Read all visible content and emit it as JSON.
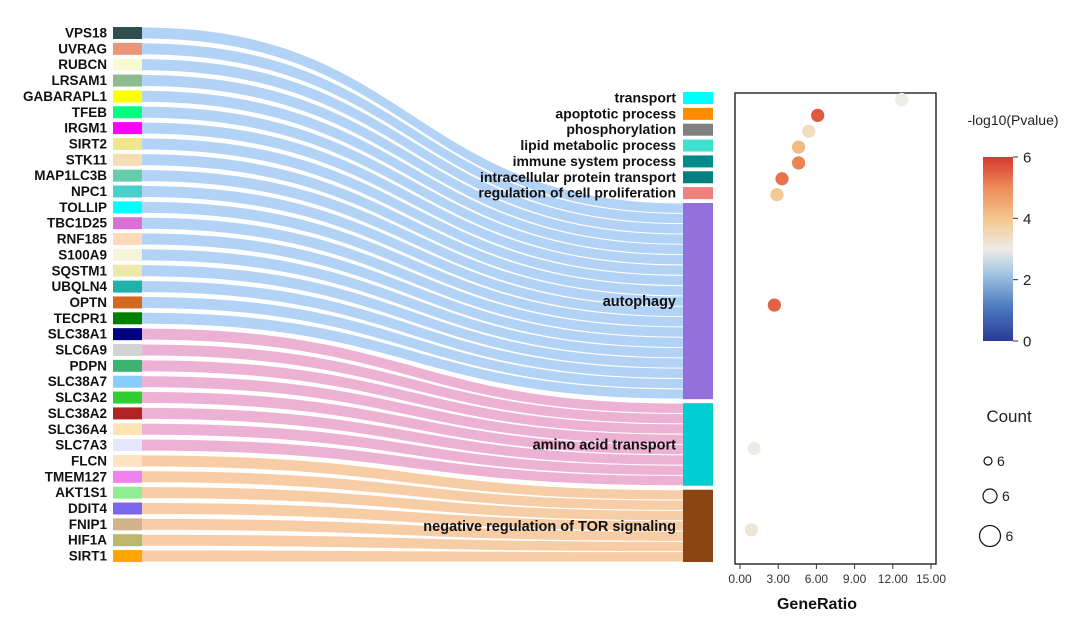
{
  "chart_data": [
    {
      "type": "sankey",
      "genes": [
        {
          "name": "VPS18",
          "color": "#2f4f4f"
        },
        {
          "name": "UVRAG",
          "color": "#e9967a"
        },
        {
          "name": "RUBCN",
          "color": "#fafad2"
        },
        {
          "name": "LRSAM1",
          "color": "#8fbc8f"
        },
        {
          "name": "GABARAPL1",
          "color": "#ffff00"
        },
        {
          "name": "TFEB",
          "color": "#00ff7f"
        },
        {
          "name": "IRGM1",
          "color": "#ff00ff"
        },
        {
          "name": "SIRT2",
          "color": "#f0e68c"
        },
        {
          "name": "STK11",
          "color": "#f5deb3"
        },
        {
          "name": "MAP1LC3B",
          "color": "#66cdaa"
        },
        {
          "name": "NPC1",
          "color": "#48d1cc"
        },
        {
          "name": "TOLLIP",
          "color": "#00ffff"
        },
        {
          "name": "TBC1D25",
          "color": "#da70d6"
        },
        {
          "name": "RNF185",
          "color": "#ffdab9"
        },
        {
          "name": "S100A9",
          "color": "#f5f5dc"
        },
        {
          "name": "SQSTM1",
          "color": "#eee8aa"
        },
        {
          "name": "UBQLN4",
          "color": "#20b2aa"
        },
        {
          "name": "OPTN",
          "color": "#d2691e"
        },
        {
          "name": "TECPR1",
          "color": "#008000"
        },
        {
          "name": "SLC38A1",
          "color": "#000080"
        },
        {
          "name": "SLC6A9",
          "color": "#d3d3d3"
        },
        {
          "name": "PDPN",
          "color": "#3cb371"
        },
        {
          "name": "SLC38A7",
          "color": "#87cefa"
        },
        {
          "name": "SLC3A2",
          "color": "#32cd32"
        },
        {
          "name": "SLC38A2",
          "color": "#b22222"
        },
        {
          "name": "SLC36A4",
          "color": "#ffe4b5"
        },
        {
          "name": "SLC7A3",
          "color": "#e6e6fa"
        },
        {
          "name": "FLCN",
          "color": "#ffe4c4"
        },
        {
          "name": "TMEM127",
          "color": "#ee82ee"
        },
        {
          "name": "AKT1S1",
          "color": "#90ee90"
        },
        {
          "name": "DDIT4",
          "color": "#7b68ee"
        },
        {
          "name": "FNIP1",
          "color": "#d2b48c"
        },
        {
          "name": "HIF1A",
          "color": "#bdb76b"
        },
        {
          "name": "SIRT1",
          "color": "#ffa500"
        }
      ],
      "terms": [
        {
          "name": "transport",
          "color": "#00ffff",
          "genes": 0
        },
        {
          "name": "apoptotic process",
          "color": "#ff8c00",
          "genes": 0
        },
        {
          "name": "phosphorylation",
          "color": "#808080",
          "genes": 0
        },
        {
          "name": "lipid metabolic process",
          "color": "#40e0d0",
          "genes": 0
        },
        {
          "name": "immune system process",
          "color": "#008b8b",
          "genes": 0
        },
        {
          "name": "intracellular protein transport",
          "color": "#008080",
          "genes": 0
        },
        {
          "name": "regulation of cell proliferation",
          "color": "#f08080",
          "genes": 0
        },
        {
          "name": "autophagy",
          "color": "#9370db",
          "genes": 19
        },
        {
          "name": "amino acid transport",
          "color": "#00ced1",
          "genes": 8
        },
        {
          "name": "negative regulation of TOR signaling",
          "color": "#8b4513",
          "genes": 7
        }
      ],
      "link_colors": {
        "autophagy": "#b2d3f5",
        "amino acid transport": "#edb1d3",
        "negative regulation of TOR signaling": "#f7cda6"
      }
    },
    {
      "type": "scatter",
      "xlabel": "GeneRatio",
      "xlim": [
        0,
        15
      ],
      "xticks": [
        "0.00",
        "3.00",
        "6.00",
        "9.00",
        "12.00",
        "15.00"
      ],
      "points": [
        {
          "term": "transport",
          "x": 12.7,
          "p": 3.0
        },
        {
          "term": "apoptotic process",
          "x": 6.1,
          "p": 5.6
        },
        {
          "term": "phosphorylation",
          "x": 5.4,
          "p": 3.4
        },
        {
          "term": "lipid metabolic process",
          "x": 4.6,
          "p": 4.2
        },
        {
          "term": "immune system process",
          "x": 4.6,
          "p": 5.1
        },
        {
          "term": "intracellular protein transport",
          "x": 3.3,
          "p": 5.3
        },
        {
          "term": "regulation of cell proliferation",
          "x": 2.9,
          "p": 3.9
        },
        {
          "term": "autophagy",
          "x": 2.7,
          "p": 5.5
        },
        {
          "term": "amino acid transport",
          "x": 1.1,
          "p": 3.0
        },
        {
          "term": "negative regulation of TOR signaling",
          "x": 0.9,
          "p": 3.2
        }
      ],
      "color_legend": {
        "title": "-log10(Pvalue)",
        "range": [
          0,
          6
        ],
        "ticks": [
          "0",
          "2",
          "4",
          "6"
        ]
      },
      "size_legend": {
        "title": "Count",
        "labels": [
          "6",
          "6",
          "6"
        ]
      }
    }
  ]
}
